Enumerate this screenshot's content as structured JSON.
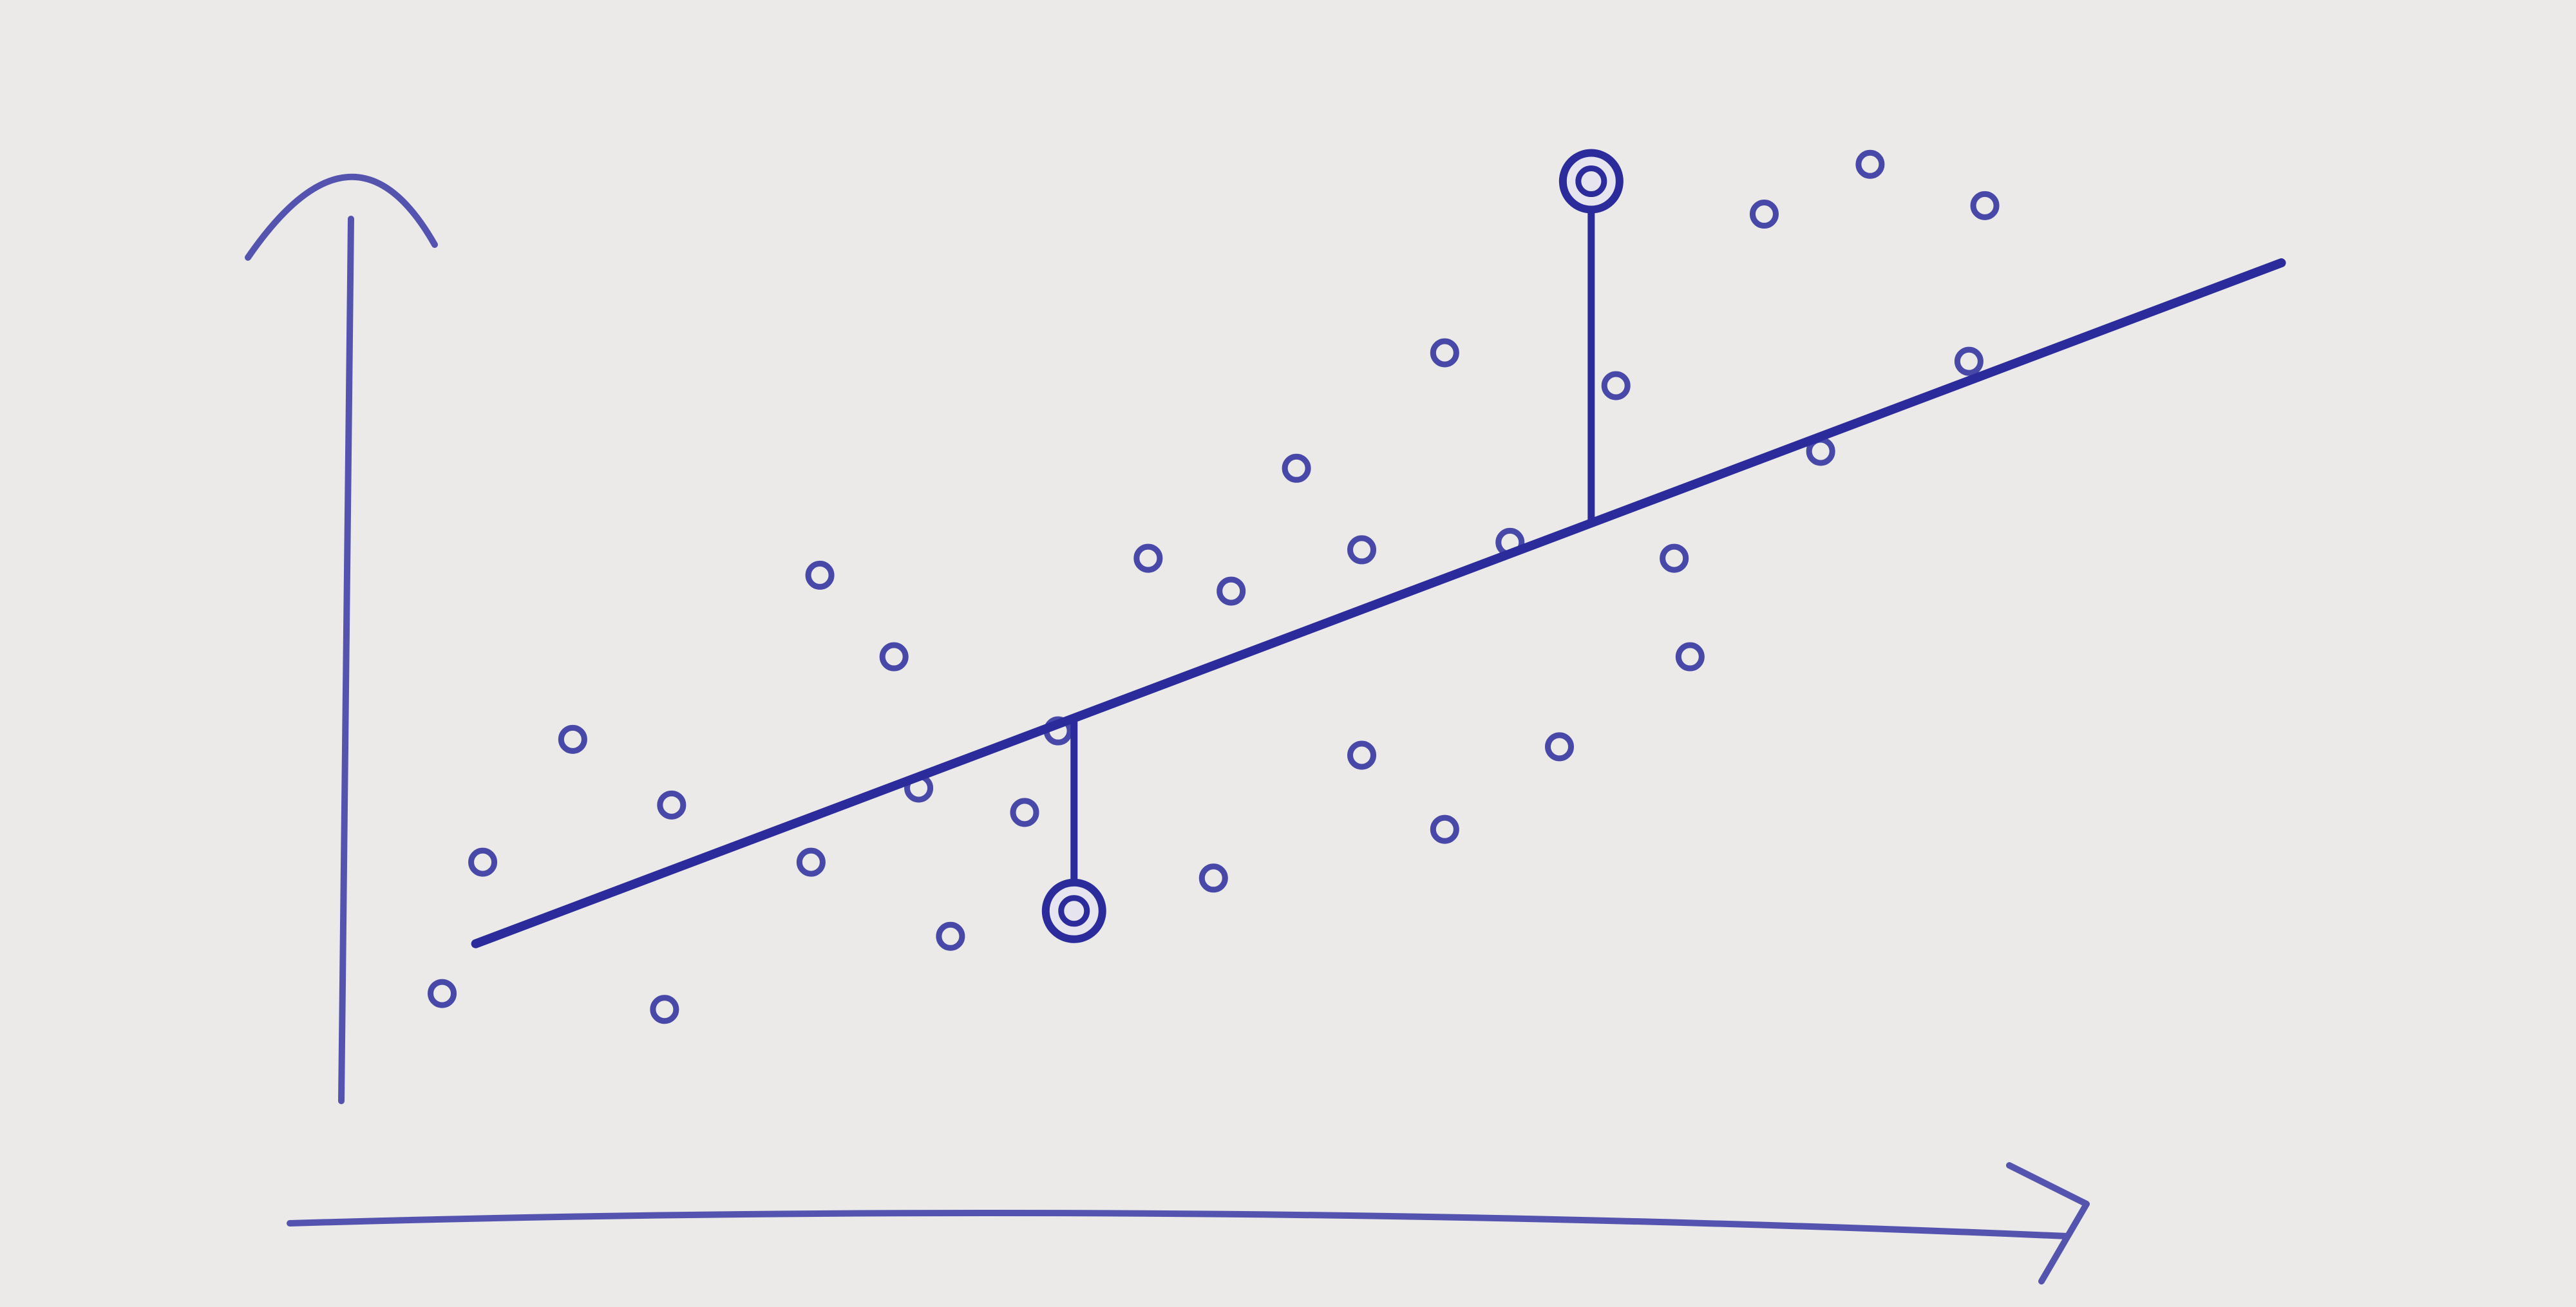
{
  "chart_data": {
    "type": "scatter",
    "xlim": [
      0,
      115
    ],
    "ylim": [
      0,
      105
    ],
    "series": [
      {
        "type": "scatter",
        "color": "#2b2b9c",
        "x": [
          10.2,
          15.3,
          20.9,
          20.5,
          7.9,
          28.8,
          29.3,
          33.5,
          36.7,
          34.9,
          40.9,
          42.8,
          47.9,
          56.3,
          52.6,
          60.0,
          64.7,
          68.4,
          60.0,
          71.2,
          78.6,
          77.7,
          86.0,
          94.4,
          95.3,
          82.8,
          88.8,
          74.4,
          51.6,
          64.7
        ],
        "values": [
          34.1,
          45.7,
          39.5,
          20.2,
          21.7,
          34.1,
          61.2,
          53.5,
          27.1,
          41.1,
          38.8,
          46.5,
          62.8,
          71.3,
          59.7,
          63.6,
          82.2,
          64.3,
          44.2,
          45.0,
          53.5,
          62.8,
          72.9,
          81.4,
          96.1,
          95.3,
          100.0,
          79.1,
          32.6,
          37.2
        ]
      },
      {
        "type": "highlight",
        "color": "#2b2b9c",
        "x": [
          43.7,
          73.0
        ],
        "values": [
          29.5,
          98.4
        ]
      },
      {
        "type": "line",
        "color": "#2b2b9c",
        "x": [
          9.8,
          112.1
        ],
        "values": [
          26.4,
          90.7
        ]
      }
    ]
  }
}
